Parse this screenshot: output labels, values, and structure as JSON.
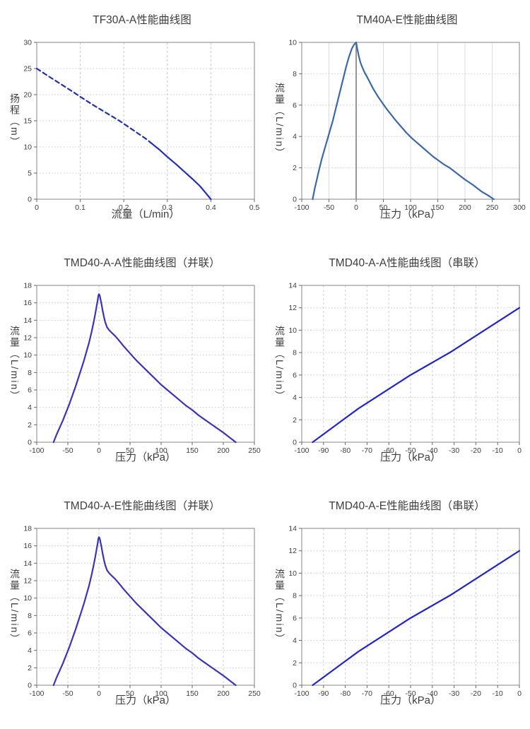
{
  "page": {
    "background": "#ffffff",
    "text_color": "#3d3d3d",
    "spine_color": "#999999",
    "tick_color": "#666666",
    "tick_label_color": "#3e3e3e"
  },
  "chart_data": [
    {
      "type": "line",
      "title": "TF30A-A性能曲线图",
      "xlabel": "流量（L/min）",
      "ylabel": "扬程（m）",
      "xlim": [
        0,
        0.5
      ],
      "ylim": [
        0,
        30
      ],
      "xticks": [
        0,
        0.1,
        0.2,
        0.3,
        0.4,
        0.5
      ],
      "xtick_labels": [
        "0",
        "0.1",
        "0.2",
        "0.3",
        "0.4",
        "0.5"
      ],
      "yticks": [
        0,
        5,
        10,
        15,
        20,
        25,
        30
      ],
      "ytick_labels": [
        "0",
        "5",
        "10",
        "15",
        "20",
        "25",
        "30"
      ],
      "grid": {
        "x_style": "dashed",
        "y_style": "dotted",
        "x_color": "#c8c8c8",
        "y_color": "#c8c8c8"
      },
      "line_color": "#2230ae",
      "legend": "none",
      "series": [
        {
          "name": "dashed-segment",
          "style": "dashed",
          "points": [
            [
              0,
              25
            ],
            [
              0.02,
              23.9
            ],
            [
              0.05,
              22.3
            ],
            [
              0.08,
              20.7
            ],
            [
              0.1,
              19.6
            ],
            [
              0.13,
              18.0
            ],
            [
              0.16,
              16.5
            ],
            [
              0.19,
              15.0
            ],
            [
              0.22,
              13.3
            ],
            [
              0.25,
              11.6
            ],
            [
              0.265,
              10.6
            ]
          ]
        },
        {
          "name": "solid-segment",
          "style": "solid",
          "points": [
            [
              0.265,
              10.6
            ],
            [
              0.28,
              9.6
            ],
            [
              0.3,
              8.1
            ],
            [
              0.32,
              6.7
            ],
            [
              0.34,
              5.2
            ],
            [
              0.36,
              3.7
            ],
            [
              0.375,
              2.5
            ],
            [
              0.39,
              1.0
            ],
            [
              0.4,
              0
            ]
          ]
        }
      ]
    },
    {
      "type": "line",
      "title": "TM40A-E性能曲线图",
      "xlabel": "压力（kPa）",
      "ylabel": "流量（L/min）",
      "xlim": [
        -100,
        300
      ],
      "ylim": [
        0,
        10
      ],
      "xticks": [
        -100,
        -50,
        0,
        50,
        100,
        150,
        200,
        250,
        300
      ],
      "xtick_labels": [
        "-100",
        "-50",
        "0",
        "50",
        "100",
        "150",
        "200",
        "250",
        "300"
      ],
      "yticks": [
        0,
        2,
        4,
        6,
        8,
        10
      ],
      "ytick_labels": [
        "0",
        "2",
        "4",
        "6",
        "8",
        "10"
      ],
      "grid": {
        "x_style": "solid",
        "y_style": "dotted",
        "x_color": "#dcdcdc",
        "y_color": "#c8c8c8"
      },
      "line_color": "#3d68a8",
      "vline": {
        "x": 0,
        "color": "#7d7d7d"
      },
      "legend": "none",
      "series": [
        {
          "name": "curve",
          "style": "solid",
          "points": [
            [
              -80,
              0
            ],
            [
              -76,
              0.7
            ],
            [
              -72,
              1.3
            ],
            [
              -68,
              1.9
            ],
            [
              -63,
              2.6
            ],
            [
              -58,
              3.2
            ],
            [
              -53,
              3.8
            ],
            [
              -48,
              4.4
            ],
            [
              -43,
              5.0
            ],
            [
              -38,
              5.7
            ],
            [
              -33,
              6.4
            ],
            [
              -28,
              7.1
            ],
            [
              -23,
              7.8
            ],
            [
              -18,
              8.5
            ],
            [
              -13,
              9.1
            ],
            [
              -8,
              9.6
            ],
            [
              -4,
              9.85
            ],
            [
              0,
              10
            ],
            [
              2,
              9.6
            ],
            [
              5,
              9.1
            ],
            [
              8,
              8.7
            ],
            [
              12,
              8.35
            ],
            [
              16,
              8.05
            ],
            [
              20,
              7.8
            ],
            [
              26,
              7.4
            ],
            [
              32,
              7.0
            ],
            [
              40,
              6.55
            ],
            [
              48,
              6.15
            ],
            [
              55,
              5.8
            ],
            [
              63,
              5.45
            ],
            [
              72,
              5.05
            ],
            [
              82,
              4.65
            ],
            [
              92,
              4.25
            ],
            [
              102,
              3.9
            ],
            [
              112,
              3.6
            ],
            [
              122,
              3.3
            ],
            [
              132,
              3.0
            ],
            [
              142,
              2.7
            ],
            [
              152,
              2.45
            ],
            [
              162,
              2.2
            ],
            [
              172,
              2.0
            ],
            [
              185,
              1.65
            ],
            [
              200,
              1.25
            ],
            [
              215,
              0.9
            ],
            [
              230,
              0.5
            ],
            [
              242,
              0.25
            ],
            [
              253,
              0
            ]
          ]
        }
      ]
    },
    {
      "type": "line",
      "title": "TMD40-A-A性能曲线图（并联）",
      "xlabel": "压力（kPa）",
      "ylabel": "流量（L/min）",
      "xlim": [
        -100,
        250
      ],
      "ylim": [
        0,
        18
      ],
      "xticks": [
        -100,
        -50,
        0,
        50,
        100,
        150,
        200,
        250
      ],
      "xtick_labels": [
        "-100",
        "-50",
        "0",
        "50",
        "100",
        "150",
        "200",
        "250"
      ],
      "yticks": [
        0,
        2,
        4,
        6,
        8,
        10,
        12,
        14,
        16,
        18
      ],
      "ytick_labels": [
        "0",
        "2",
        "4",
        "6",
        "8",
        "10",
        "12",
        "14",
        "16",
        "18"
      ],
      "grid": {
        "x_style": "dashed",
        "y_style": "dotted",
        "x_color": "#cfcfcf",
        "y_color": "#c8c8c8"
      },
      "line_color": "#3b34b6",
      "legend": "none",
      "series": [
        {
          "name": "curve",
          "style": "solid",
          "points": [
            [
              -73,
              0
            ],
            [
              -68,
              0.9
            ],
            [
              -63,
              1.7
            ],
            [
              -58,
              2.5
            ],
            [
              -53,
              3.4
            ],
            [
              -48,
              4.3
            ],
            [
              -43,
              5.3
            ],
            [
              -38,
              6.3
            ],
            [
              -33,
              7.4
            ],
            [
              -28,
              8.5
            ],
            [
              -24,
              9.4
            ],
            [
              -20,
              10.4
            ],
            [
              -16,
              11.4
            ],
            [
              -12,
              12.6
            ],
            [
              -9,
              13.6
            ],
            [
              -6,
              14.7
            ],
            [
              -4,
              15.5
            ],
            [
              -2,
              16.3
            ],
            [
              -1,
              16.8
            ],
            [
              0,
              17
            ],
            [
              1,
              16.9
            ],
            [
              2,
              16.6
            ],
            [
              4,
              15.9
            ],
            [
              6,
              15.1
            ],
            [
              8,
              14.4
            ],
            [
              10,
              13.8
            ],
            [
              13,
              13.2
            ],
            [
              16,
              12.9
            ],
            [
              20,
              12.6
            ],
            [
              26,
              12.2
            ],
            [
              32,
              11.7
            ],
            [
              40,
              11.0
            ],
            [
              50,
              10.2
            ],
            [
              60,
              9.4
            ],
            [
              70,
              8.7
            ],
            [
              80,
              8.0
            ],
            [
              90,
              7.3
            ],
            [
              100,
              6.6
            ],
            [
              110,
              6.0
            ],
            [
              120,
              5.4
            ],
            [
              130,
              4.8
            ],
            [
              140,
              4.2
            ],
            [
              150,
              3.7
            ],
            [
              160,
              3.1
            ],
            [
              170,
              2.6
            ],
            [
              180,
              2.1
            ],
            [
              190,
              1.6
            ],
            [
              200,
              1.1
            ],
            [
              210,
              0.55
            ],
            [
              220,
              0
            ]
          ]
        }
      ]
    },
    {
      "type": "line",
      "title": "TMD40-A-A性能曲线图（串联）",
      "xlabel": "压力（kPa）",
      "ylabel": "流量（L/min）",
      "xlim": [
        -100,
        0
      ],
      "ylim": [
        0,
        14
      ],
      "xticks": [
        -100,
        -90,
        -80,
        -70,
        -60,
        -50,
        -40,
        -30,
        -20,
        -10,
        0
      ],
      "xtick_labels": [
        "-100",
        "-90",
        "-80",
        "-70",
        "-60",
        "-50",
        "-40",
        "-30",
        "-20",
        "-10",
        "0"
      ],
      "yticks": [
        0,
        2,
        4,
        6,
        8,
        10,
        12,
        14
      ],
      "ytick_labels": [
        "0",
        "2",
        "4",
        "6",
        "8",
        "10",
        "12",
        "14"
      ],
      "grid": {
        "x_style": "dashed",
        "y_style": "dotted",
        "x_color": "#cfcfcf",
        "y_color": "#c8c8c8"
      },
      "line_color": "#2326c4",
      "legend": "none",
      "series": [
        {
          "name": "curve",
          "style": "solid",
          "points": [
            [
              -95,
              0
            ],
            [
              -88,
              1.0
            ],
            [
              -81,
              2.0
            ],
            [
              -74,
              3.0
            ],
            [
              -66,
              4.0
            ],
            [
              -58,
              5.0
            ],
            [
              -50,
              6.0
            ],
            [
              -41,
              7.0
            ],
            [
              -32,
              8.0
            ],
            [
              -24,
              9.0
            ],
            [
              -16,
              10.0
            ],
            [
              -8,
              11.0
            ],
            [
              0,
              12.0
            ]
          ]
        }
      ]
    },
    {
      "type": "line",
      "title": "TMD40-A-E性能曲线图（并联）",
      "xlabel": "压力（kPa）",
      "ylabel": "流量（L/min）",
      "xlim": [
        -100,
        250
      ],
      "ylim": [
        0,
        18
      ],
      "xticks": [
        -100,
        -50,
        0,
        50,
        100,
        150,
        200,
        250
      ],
      "xtick_labels": [
        "-100",
        "-50",
        "0",
        "50",
        "100",
        "150",
        "200",
        "250"
      ],
      "yticks": [
        0,
        2,
        4,
        6,
        8,
        10,
        12,
        14,
        16,
        18
      ],
      "ytick_labels": [
        "0",
        "2",
        "4",
        "6",
        "8",
        "10",
        "12",
        "14",
        "16",
        "18"
      ],
      "grid": {
        "x_style": "dashed",
        "y_style": "dotted",
        "x_color": "#cfcfcf",
        "y_color": "#c8c8c8"
      },
      "line_color": "#3b34b6",
      "legend": "none",
      "series": [
        {
          "name": "curve",
          "style": "solid",
          "points": [
            [
              -73,
              0
            ],
            [
              -68,
              0.9
            ],
            [
              -63,
              1.7
            ],
            [
              -58,
              2.5
            ],
            [
              -53,
              3.4
            ],
            [
              -48,
              4.3
            ],
            [
              -43,
              5.3
            ],
            [
              -38,
              6.3
            ],
            [
              -33,
              7.4
            ],
            [
              -28,
              8.5
            ],
            [
              -24,
              9.4
            ],
            [
              -20,
              10.4
            ],
            [
              -16,
              11.4
            ],
            [
              -12,
              12.6
            ],
            [
              -9,
              13.6
            ],
            [
              -6,
              14.7
            ],
            [
              -4,
              15.5
            ],
            [
              -2,
              16.3
            ],
            [
              -1,
              16.8
            ],
            [
              0,
              17
            ],
            [
              1,
              16.9
            ],
            [
              2,
              16.6
            ],
            [
              4,
              15.9
            ],
            [
              6,
              15.1
            ],
            [
              8,
              14.4
            ],
            [
              10,
              13.8
            ],
            [
              13,
              13.2
            ],
            [
              16,
              12.9
            ],
            [
              20,
              12.6
            ],
            [
              26,
              12.2
            ],
            [
              32,
              11.7
            ],
            [
              40,
              11.0
            ],
            [
              50,
              10.2
            ],
            [
              60,
              9.4
            ],
            [
              70,
              8.7
            ],
            [
              80,
              8.0
            ],
            [
              90,
              7.3
            ],
            [
              100,
              6.6
            ],
            [
              110,
              6.0
            ],
            [
              120,
              5.4
            ],
            [
              130,
              4.8
            ],
            [
              140,
              4.2
            ],
            [
              150,
              3.7
            ],
            [
              160,
              3.1
            ],
            [
              170,
              2.6
            ],
            [
              180,
              2.1
            ],
            [
              190,
              1.6
            ],
            [
              200,
              1.1
            ],
            [
              210,
              0.55
            ],
            [
              220,
              0
            ]
          ]
        }
      ]
    },
    {
      "type": "line",
      "title": "TMD40-A-E性能曲线图（串联）",
      "xlabel": "压力（kPa）",
      "ylabel": "流量（L/min）",
      "xlim": [
        -100,
        0
      ],
      "ylim": [
        0,
        14
      ],
      "xticks": [
        -100,
        -90,
        -80,
        -70,
        -60,
        -50,
        -40,
        -30,
        -20,
        -10,
        0
      ],
      "xtick_labels": [
        "-100",
        "-90",
        "-80",
        "-70",
        "-60",
        "-50",
        "-40",
        "-30",
        "-20",
        "-10",
        "0"
      ],
      "yticks": [
        0,
        2,
        4,
        6,
        8,
        10,
        12,
        14
      ],
      "ytick_labels": [
        "0",
        "2",
        "4",
        "6",
        "8",
        "10",
        "12",
        "14"
      ],
      "grid": {
        "x_style": "dashed",
        "y_style": "dotted",
        "x_color": "#cfcfcf",
        "y_color": "#c8c8c8"
      },
      "line_color": "#2326c4",
      "legend": "none",
      "series": [
        {
          "name": "curve",
          "style": "solid",
          "points": [
            [
              -95,
              0
            ],
            [
              -88,
              1.0
            ],
            [
              -81,
              2.0
            ],
            [
              -74,
              3.0
            ],
            [
              -66,
              4.0
            ],
            [
              -58,
              5.0
            ],
            [
              -50,
              6.0
            ],
            [
              -41,
              7.0
            ],
            [
              -32,
              8.0
            ],
            [
              -24,
              9.0
            ],
            [
              -16,
              10.0
            ],
            [
              -8,
              11.0
            ],
            [
              0,
              12.0
            ]
          ]
        }
      ]
    }
  ]
}
